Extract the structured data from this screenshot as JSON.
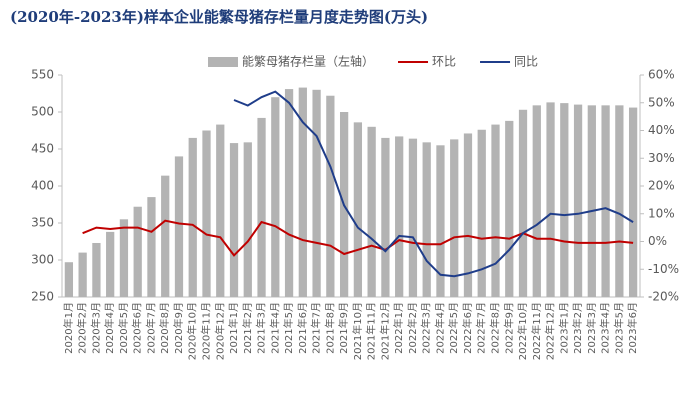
{
  "chart_data": {
    "type": "bar",
    "title": "(2020年-2023年)样本企业能繁母猪存栏量月度走势图(万头)",
    "categories": [
      "2020年1月",
      "2020年2月",
      "2020年3月",
      "2020年4月",
      "2020年5月",
      "2020年6月",
      "2020年7月",
      "2020年8月",
      "2020年9月",
      "2020年10月",
      "2020年11月",
      "2020年12月",
      "2021年1月",
      "2021年2月",
      "2021年3月",
      "2021年4月",
      "2021年5月",
      "2021年6月",
      "2021年7月",
      "2021年8月",
      "2021年9月",
      "2021年10月",
      "2021年11月",
      "2021年12月",
      "2022年1月",
      "2022年2月",
      "2022年3月",
      "2022年4月",
      "2022年5月",
      "2022年6月",
      "2022年7月",
      "2022年8月",
      "2022年9月",
      "2022年10月",
      "2022年11月",
      "2022年12月",
      "2023年1月",
      "2023年2月",
      "2023年3月",
      "2023年4月",
      "2023年5月",
      "2023年6月"
    ],
    "series": [
      {
        "name": "能繁母猪存栏量（左轴）",
        "type": "bar",
        "color": "#b3b3b3",
        "values": [
          297,
          310,
          323,
          338,
          355,
          372,
          385,
          414,
          440,
          465,
          475,
          483,
          458,
          459,
          492,
          520,
          531,
          533,
          530,
          522,
          500,
          486,
          480,
          465,
          467,
          464,
          459,
          455,
          463,
          471,
          476,
          483,
          488,
          503,
          509,
          513,
          512,
          510,
          509,
          509,
          509,
          506
        ]
      },
      {
        "name": "环比",
        "type": "line",
        "axis": "y2",
        "color": "#c00000",
        "values": [
          null,
          3,
          5,
          4.5,
          5,
          5,
          3.5,
          7.5,
          6.5,
          6,
          2.5,
          1.5,
          -5,
          0,
          7,
          5.5,
          2.5,
          0.5,
          -0.5,
          -1.5,
          -4.5,
          -3,
          -1.5,
          -3,
          0.5,
          -0.5,
          -1,
          -1,
          1.5,
          2,
          1,
          1.5,
          1,
          3,
          1,
          1,
          0,
          -0.5,
          -0.5,
          -0.5,
          0,
          -0.5
        ]
      },
      {
        "name": "同比",
        "type": "line",
        "axis": "y2",
        "color": "#1f3d8a",
        "values": [
          null,
          null,
          null,
          null,
          null,
          null,
          null,
          null,
          null,
          null,
          null,
          null,
          51,
          49,
          52,
          54,
          50,
          43,
          38,
          27,
          13,
          5,
          1,
          -3.5,
          2,
          1.5,
          -7,
          -12,
          -12.5,
          -11.5,
          -10,
          -8,
          -3,
          3,
          6,
          10,
          9.5,
          10,
          11,
          12,
          10,
          7
        ]
      }
    ],
    "ylim": [
      250,
      550
    ],
    "yticks": [
      250,
      300,
      350,
      400,
      450,
      500,
      550
    ],
    "y2lim": [
      -20,
      60
    ],
    "y2ticks": [
      {
        "value": -20,
        "label": "-20%"
      },
      {
        "value": -10,
        "label": "-10%"
      },
      {
        "value": 0,
        "label": "0%"
      },
      {
        "value": 10,
        "label": "10%"
      },
      {
        "value": 20,
        "label": "20%"
      },
      {
        "value": 30,
        "label": "30%"
      },
      {
        "value": 40,
        "label": "40%"
      },
      {
        "value": 50,
        "label": "50%"
      },
      {
        "value": 60,
        "label": "60%"
      }
    ],
    "legend": "top"
  }
}
